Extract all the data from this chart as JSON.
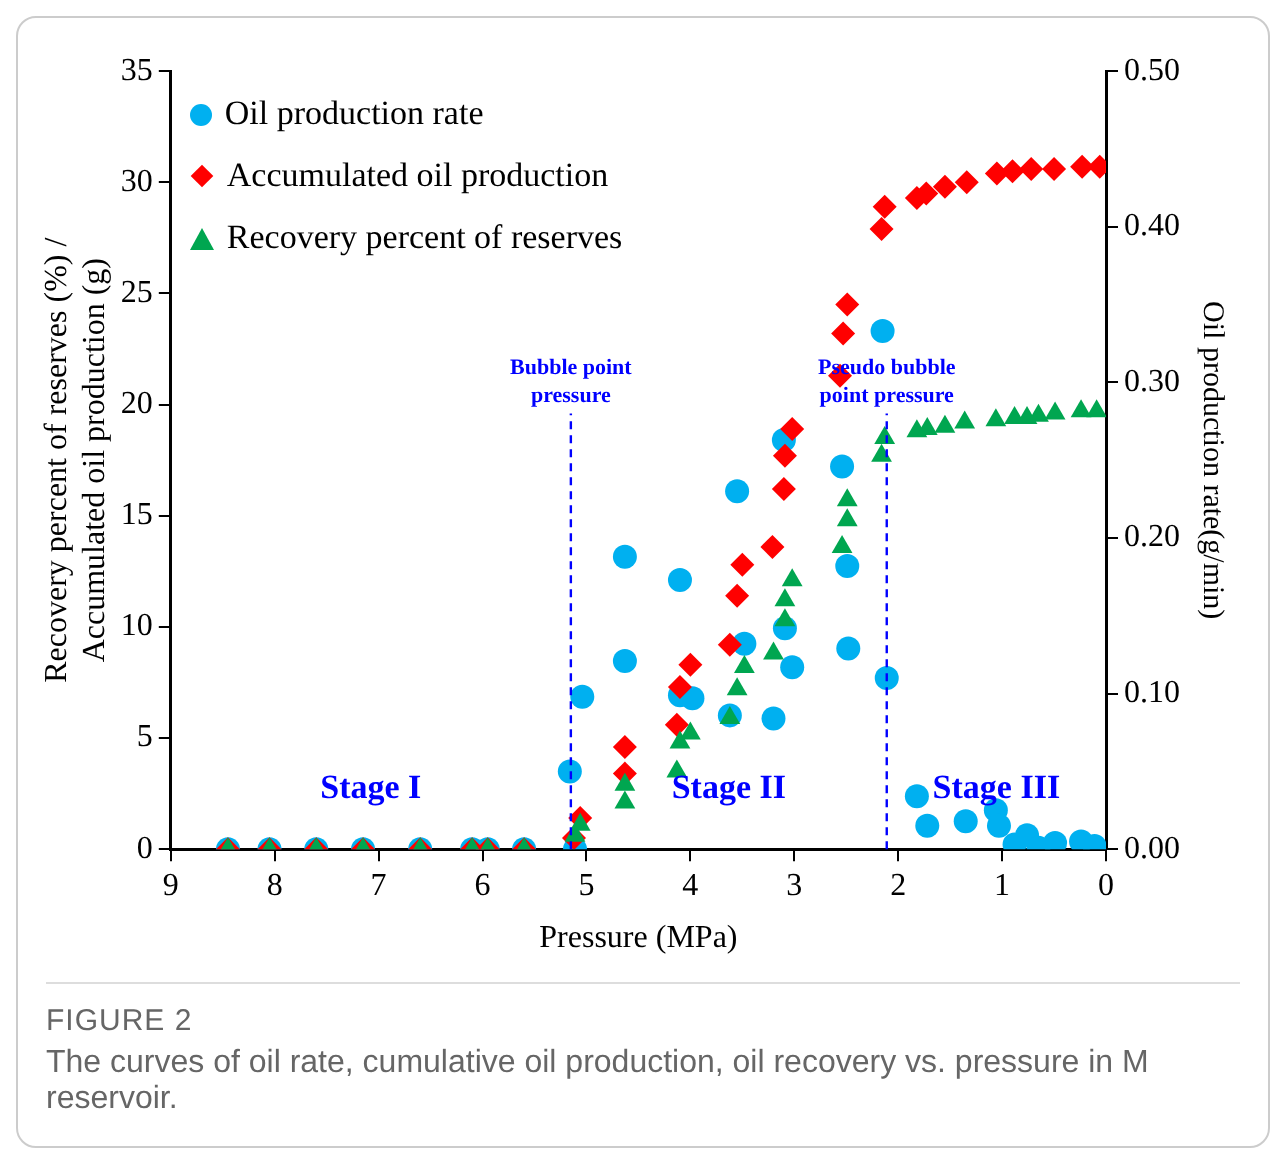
{
  "chart_data": {
    "type": "scatter",
    "xlabel": "Pressure (MPa)",
    "ylabel": "Recovery percent of reserves (%) / Accumulated oil production (g)",
    "y2label": "Oil production rate(g/min)",
    "xlim": [
      9,
      0
    ],
    "xticks": [
      9,
      8,
      7,
      6,
      5,
      4,
      3,
      2,
      1,
      0
    ],
    "ylim": [
      0,
      35
    ],
    "yticks": [
      0,
      5,
      10,
      15,
      20,
      25,
      30,
      35
    ],
    "y2lim": [
      0,
      0.5
    ],
    "y2ticks": [
      {
        "value": 0,
        "label": "0.00"
      },
      {
        "value": 0.1,
        "label": "0.10"
      },
      {
        "value": 0.2,
        "label": "0.20"
      },
      {
        "value": 0.3,
        "label": "0.30"
      },
      {
        "value": 0.4,
        "label": "0.40"
      },
      {
        "value": 0.5,
        "label": "0.50"
      }
    ],
    "grid": false,
    "legend": "top left",
    "series": [
      {
        "name": "Oil production rate",
        "color": "#00b0f0",
        "marker": "circle",
        "axis": "y2",
        "x": [
          8.45,
          8.05,
          7.6,
          7.15,
          6.6,
          6.1,
          5.95,
          5.6,
          5.11,
          5.16,
          5.04,
          4.63,
          4.63,
          4.1,
          4.1,
          3.98,
          3.62,
          3.55,
          3.48,
          3.2,
          3.1,
          3.09,
          3.02,
          2.54,
          2.49,
          2.48,
          2.15,
          2.11,
          1.82,
          1.72,
          1.35,
          1.06,
          1.03,
          0.88,
          0.76,
          0.65,
          0.49,
          0.24,
          0.11
        ],
        "values": [
          0,
          0,
          0,
          0,
          0,
          0,
          0,
          0,
          0,
          0.05,
          0.098,
          0.121,
          0.188,
          0.173,
          0.099,
          0.097,
          0.086,
          0.23,
          0.132,
          0.084,
          0.263,
          0.142,
          0.117,
          0.246,
          0.182,
          0.129,
          0.333,
          0.11,
          0.034,
          0.015,
          0.018,
          0.025,
          0.015,
          0.003,
          0.009,
          0.001,
          0.004,
          0.005,
          0.002
        ]
      },
      {
        "name": "Accumulated oil production",
        "color": "#ff0000",
        "marker": "diamond",
        "x": [
          8.45,
          8.05,
          7.6,
          7.15,
          6.6,
          6.1,
          5.95,
          5.6,
          5.12,
          5.06,
          4.63,
          4.63,
          4.13,
          4.1,
          4.0,
          3.62,
          3.55,
          3.5,
          3.21,
          3.1,
          3.09,
          3.02,
          2.56,
          2.53,
          2.49,
          2.16,
          2.13,
          1.82,
          1.73,
          1.55,
          1.34,
          1.05,
          0.9,
          0.72,
          0.5,
          0.23,
          0.06
        ],
        "values": [
          0,
          0,
          0,
          0,
          0,
          0,
          0,
          0,
          0.5,
          1.4,
          3.4,
          4.6,
          5.6,
          7.3,
          8.3,
          9.2,
          11.4,
          12.8,
          13.6,
          16.2,
          17.7,
          18.9,
          21.3,
          23.2,
          24.5,
          27.9,
          28.9,
          29.3,
          29.5,
          29.8,
          30.0,
          30.4,
          30.5,
          30.6,
          30.6,
          30.7,
          30.7
        ]
      },
      {
        "name": "Recovery percent of reserves",
        "color": "#00a650",
        "marker": "triangle",
        "x": [
          8.45,
          8.05,
          7.6,
          7.15,
          6.6,
          6.1,
          5.95,
          5.6,
          5.11,
          5.06,
          4.63,
          4.63,
          4.13,
          4.1,
          4.0,
          3.62,
          3.55,
          3.48,
          3.2,
          3.09,
          3.09,
          3.02,
          2.54,
          2.49,
          2.49,
          2.16,
          2.13,
          1.82,
          1.72,
          1.55,
          1.36,
          1.06,
          0.88,
          0.76,
          0.65,
          0.49,
          0.24,
          0.09
        ],
        "values": [
          0,
          0,
          0,
          0,
          0,
          0,
          0,
          0,
          0.6,
          1.1,
          2.1,
          2.9,
          3.5,
          4.8,
          5.2,
          5.9,
          7.2,
          8.2,
          8.8,
          10.3,
          11.2,
          12.1,
          13.6,
          14.8,
          15.7,
          17.7,
          18.5,
          18.8,
          18.9,
          19.0,
          19.2,
          19.3,
          19.4,
          19.4,
          19.5,
          19.6,
          19.7,
          19.7
        ]
      }
    ],
    "ref_lines": [
      {
        "axis": "x",
        "value": 5.15,
        "label": "Bubble point pressure",
        "color": "#0000ff",
        "line_style": "dashed"
      },
      {
        "axis": "x",
        "value": 2.11,
        "label": "Pseudo bubble point pressure",
        "color": "#0000ff",
        "line_style": "dashed"
      }
    ],
    "annotations": [
      "Stage I",
      "Stage II",
      "Stage III",
      "FIGURE 2",
      "The curves of oil rate, cumulative oil production, oil recovery vs. pressure in M reservoir."
    ]
  }
}
